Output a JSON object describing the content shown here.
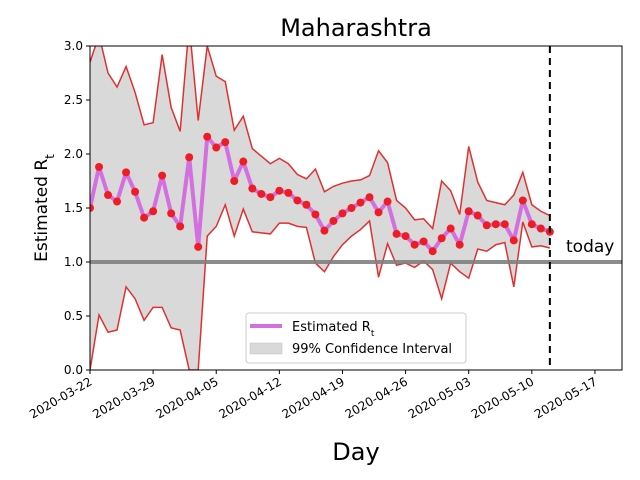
{
  "chart_data": {
    "type": "line",
    "title": "Maharashtra",
    "xlabel": "Day",
    "ylabel_main": "Estimated R",
    "ylabel_sub": "t",
    "ylim": [
      0,
      3.0
    ],
    "yticks": [
      0.0,
      0.5,
      1.0,
      1.5,
      2.0,
      2.5,
      3.0
    ],
    "ytick_labels": [
      "0.0",
      "0.5",
      "1.0",
      "1.5",
      "2.0",
      "2.5",
      "3.0"
    ],
    "xlim": [
      "2020-03-22",
      "2020-05-20"
    ],
    "xticks": [
      "2020-03-22",
      "2020-03-29",
      "2020-04-05",
      "2020-04-12",
      "2020-04-19",
      "2020-04-26",
      "2020-05-03",
      "2020-05-10",
      "2020-05-17"
    ],
    "reference_line": 1.0,
    "today_marker": {
      "date": "2020-05-12",
      "label": "today"
    },
    "legend": {
      "placement": "lower center",
      "entries": [
        {
          "label_main": "Estimated R",
          "label_sub": "t",
          "color": "#d46fe0"
        },
        {
          "label_main": "99% Confidence Interval",
          "label_sub": "",
          "color": "#d9d9d9"
        }
      ]
    },
    "colors": {
      "estimate_line": "#d46fe0",
      "points": "#ee1c24",
      "ci_bounds": "#e03030",
      "ci_fill": "#d9d9d9",
      "reference": "#808080"
    },
    "series": [
      {
        "name": "Estimated Rt",
        "points": [
          [
            "2020-03-22",
            1.5
          ],
          [
            "2020-03-23",
            1.88
          ],
          [
            "2020-03-24",
            1.62
          ],
          [
            "2020-03-25",
            1.56
          ],
          [
            "2020-03-26",
            1.83
          ],
          [
            "2020-03-27",
            1.65
          ],
          [
            "2020-03-28",
            1.41
          ],
          [
            "2020-03-29",
            1.47
          ],
          [
            "2020-03-30",
            1.8
          ],
          [
            "2020-03-31",
            1.45
          ],
          [
            "2020-04-01",
            1.33
          ],
          [
            "2020-04-02",
            1.97
          ],
          [
            "2020-04-03",
            1.14
          ],
          [
            "2020-04-04",
            2.16
          ],
          [
            "2020-04-05",
            2.06
          ],
          [
            "2020-04-06",
            2.11
          ],
          [
            "2020-04-07",
            1.75
          ],
          [
            "2020-04-08",
            1.93
          ],
          [
            "2020-04-09",
            1.68
          ],
          [
            "2020-04-10",
            1.63
          ],
          [
            "2020-04-11",
            1.6
          ],
          [
            "2020-04-12",
            1.66
          ],
          [
            "2020-04-13",
            1.64
          ],
          [
            "2020-04-14",
            1.57
          ],
          [
            "2020-04-15",
            1.53
          ],
          [
            "2020-04-16",
            1.44
          ],
          [
            "2020-04-17",
            1.29
          ],
          [
            "2020-04-18",
            1.38
          ],
          [
            "2020-04-19",
            1.45
          ],
          [
            "2020-04-20",
            1.5
          ],
          [
            "2020-04-21",
            1.55
          ],
          [
            "2020-04-22",
            1.6
          ],
          [
            "2020-04-23",
            1.46
          ],
          [
            "2020-04-24",
            1.56
          ],
          [
            "2020-04-25",
            1.26
          ],
          [
            "2020-04-26",
            1.24
          ],
          [
            "2020-04-27",
            1.16
          ],
          [
            "2020-04-28",
            1.19
          ],
          [
            "2020-04-29",
            1.1
          ],
          [
            "2020-04-30",
            1.22
          ],
          [
            "2020-05-01",
            1.31
          ],
          [
            "2020-05-02",
            1.16
          ],
          [
            "2020-05-03",
            1.47
          ],
          [
            "2020-05-04",
            1.43
          ],
          [
            "2020-05-05",
            1.34
          ],
          [
            "2020-05-06",
            1.35
          ],
          [
            "2020-05-07",
            1.35
          ],
          [
            "2020-05-08",
            1.2
          ],
          [
            "2020-05-09",
            1.57
          ],
          [
            "2020-05-10",
            1.35
          ],
          [
            "2020-05-11",
            1.31
          ],
          [
            "2020-05-12",
            1.28
          ]
        ]
      },
      {
        "name": "99% Confidence Interval",
        "upper": [
          2.85,
          3.1,
          2.75,
          2.62,
          2.81,
          2.57,
          2.27,
          2.29,
          2.92,
          2.43,
          2.21,
          3.2,
          2.31,
          3.0,
          2.72,
          2.67,
          2.22,
          2.35,
          2.05,
          1.98,
          1.91,
          1.96,
          1.91,
          1.81,
          1.77,
          1.86,
          1.65,
          1.7,
          1.73,
          1.75,
          1.76,
          1.8,
          2.03,
          1.92,
          1.57,
          1.5,
          1.39,
          1.4,
          1.31,
          1.75,
          1.66,
          1.44,
          2.07,
          1.74,
          1.57,
          1.55,
          1.53,
          1.62,
          1.83,
          1.53,
          1.47,
          1.43
        ],
        "lower": [
          0.0,
          0.51,
          0.35,
          0.37,
          0.77,
          0.66,
          0.46,
          0.58,
          0.58,
          0.39,
          0.37,
          0.0,
          0.0,
          1.24,
          1.33,
          1.53,
          1.24,
          1.49,
          1.28,
          1.27,
          1.26,
          1.36,
          1.36,
          1.33,
          1.32,
          0.99,
          0.91,
          1.05,
          1.16,
          1.24,
          1.3,
          1.38,
          0.86,
          1.17,
          0.97,
          0.99,
          0.95,
          1.01,
          0.93,
          0.66,
          0.99,
          0.91,
          0.85,
          1.12,
          1.1,
          1.16,
          1.18,
          0.77,
          1.37,
          1.14,
          1.15,
          1.13
        ]
      }
    ]
  }
}
